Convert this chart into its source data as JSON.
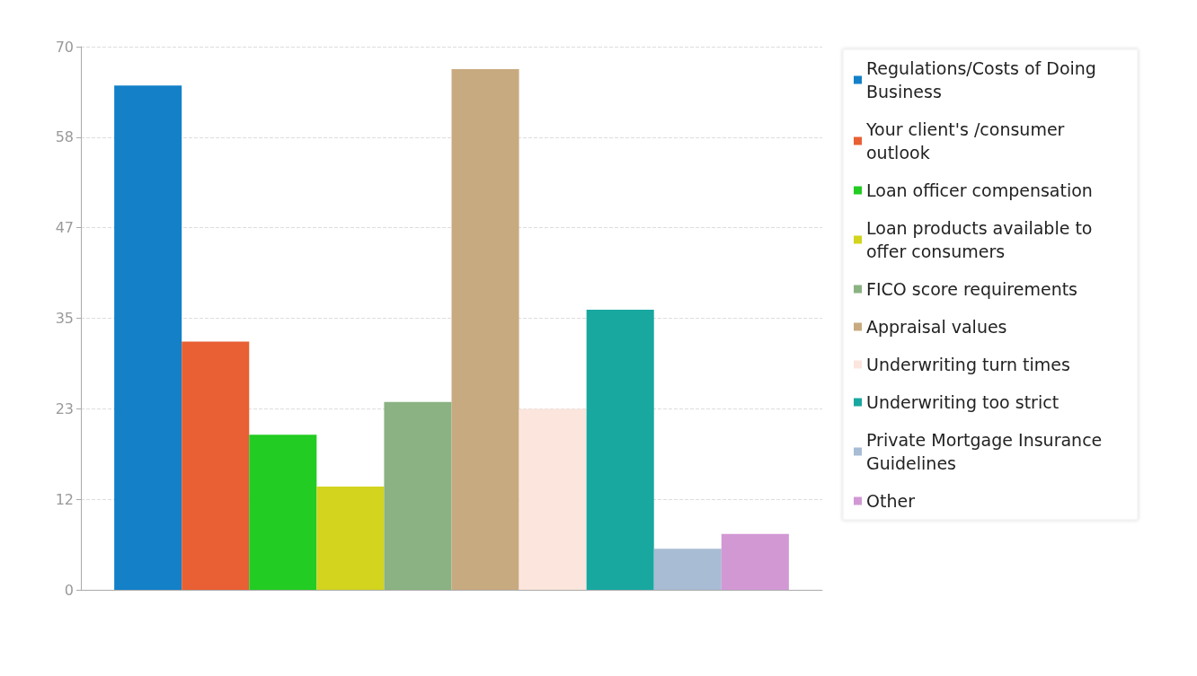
{
  "chart_data": {
    "type": "bar",
    "categories": [
      null
    ],
    "series": [
      {
        "name": "Regulations/Costs of Doing Business",
        "color": "#1380c8",
        "values": [
          65
        ]
      },
      {
        "name": "Your client's /consumer outlook",
        "color": "#e86034",
        "values": [
          32
        ]
      },
      {
        "name": "Loan officer compensation",
        "color": "#22cc22",
        "values": [
          20
        ]
      },
      {
        "name": "Loan products available to offer consumers",
        "color": "#d2d41e",
        "values": [
          13.3
        ]
      },
      {
        "name": "FICO score requirements",
        "color": "#8ab282",
        "values": [
          24.2
        ]
      },
      {
        "name": "Appraisal values",
        "color": "#c8aa80",
        "values": [
          67.1
        ]
      },
      {
        "name": "Underwriting turn times",
        "color": "#fbe5dd",
        "values": [
          23.3
        ]
      },
      {
        "name": "Underwriting too strict",
        "color": "#18a8a0",
        "values": [
          36.1
        ]
      },
      {
        "name": "Private Mortgage Insurance Guidelines",
        "color": "#a8bcd4",
        "values": [
          5.3
        ]
      },
      {
        "name": "Other",
        "color": "#d298d4",
        "values": [
          7.2
        ]
      }
    ],
    "ylim": [
      0,
      70
    ],
    "yticks": [
      0,
      {
        "value": 11.67,
        "label": "12"
      },
      {
        "value": 23.33,
        "label": "23"
      },
      35,
      {
        "value": 46.67,
        "label": "47"
      },
      {
        "value": 58.33,
        "label": "58"
      },
      70
    ],
    "grid": "y",
    "legend": "right",
    "tick_labels": "y"
  }
}
